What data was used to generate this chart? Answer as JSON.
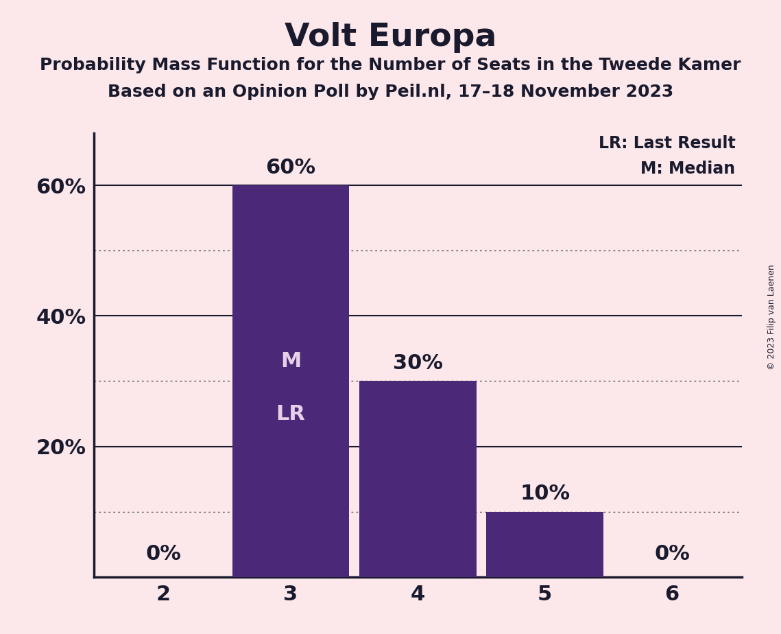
{
  "title": "Volt Europa",
  "subtitle1": "Probability Mass Function for the Number of Seats in the Tweede Kamer",
  "subtitle2": "Based on an Opinion Poll by Peil.nl, 17–18 November 2023",
  "copyright": "© 2023 Filip van Laenen",
  "categories": [
    2,
    3,
    4,
    5,
    6
  ],
  "values": [
    0,
    60,
    30,
    10,
    0
  ],
  "bar_color": "#4b2878",
  "background_color": "#fce8ea",
  "title_color": "#1a1a2e",
  "text_color": "#1a1a2e",
  "bar_label_color_inside": "#e8d0e8",
  "bar_inner_labels": {
    "3": [
      "M",
      "LR"
    ]
  },
  "legend_lr": "LR: Last Result",
  "legend_m": "M: Median",
  "yticks": [
    20,
    40,
    60
  ],
  "ytick_labels": [
    "20%",
    "40%",
    "60%"
  ],
  "dotted_lines": [
    10,
    30,
    50
  ],
  "ylim": [
    0,
    68
  ],
  "solid_line_color": "#1a1a2e",
  "dotted_line_color": "#555555",
  "bar_width": 0.92,
  "font_size_title": 34,
  "font_size_subtitle": 18,
  "font_size_ticks": 22,
  "font_size_bar_labels": 22,
  "font_size_inner": 22,
  "font_size_legend": 17,
  "font_size_copyright": 9
}
